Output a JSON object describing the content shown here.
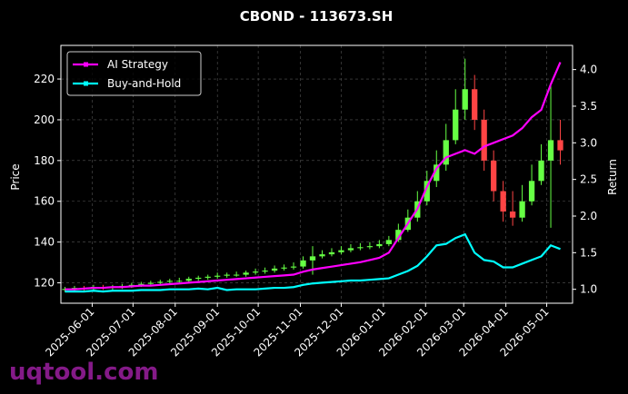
{
  "chart_data": {
    "type": "candlestick",
    "title": "CBOND - 113673.SH",
    "y_label": "Price",
    "y2_label": "Return",
    "watermark": "uqtool.com",
    "up_color": "#66ff44",
    "down_color": "#ff4444",
    "grid": true,
    "legend": "upper left",
    "x": [
      "2025-05-12",
      "2025-05-19",
      "2025-05-26",
      "2025-06-02",
      "2025-06-09",
      "2025-06-16",
      "2025-06-23",
      "2025-06-30",
      "2025-07-07",
      "2025-07-14",
      "2025-07-21",
      "2025-07-28",
      "2025-08-04",
      "2025-08-11",
      "2025-08-18",
      "2025-08-25",
      "2025-09-01",
      "2025-09-08",
      "2025-09-15",
      "2025-09-22",
      "2025-09-29",
      "2025-10-06",
      "2025-10-13",
      "2025-10-20",
      "2025-10-27",
      "2025-11-03",
      "2025-11-10",
      "2025-11-17",
      "2025-11-24",
      "2025-12-01",
      "2025-12-08",
      "2025-12-15",
      "2025-12-22",
      "2025-12-29",
      "2026-01-05",
      "2026-01-12",
      "2026-01-19",
      "2026-01-26",
      "2026-02-02",
      "2026-02-09",
      "2026-02-16",
      "2026-02-23",
      "2026-03-02",
      "2026-03-09",
      "2026-03-16",
      "2026-03-23",
      "2026-03-30",
      "2026-04-06",
      "2026-04-13",
      "2026-04-20",
      "2026-04-27",
      "2026-05-04",
      "2026-05-11"
    ],
    "open": [
      116.5,
      117,
      117.5,
      117,
      118,
      117.5,
      118,
      118.5,
      119,
      119.5,
      120,
      120.5,
      121,
      121,
      122,
      122.5,
      123,
      123.5,
      124,
      124,
      125,
      125.5,
      126,
      127,
      127.5,
      128,
      131,
      133,
      134,
      135,
      136,
      137,
      137.5,
      138,
      139,
      141,
      146,
      152,
      160,
      170,
      178,
      190,
      205,
      215,
      200,
      180,
      165,
      155,
      152,
      160,
      170,
      180,
      190
    ],
    "high": [
      118,
      118.5,
      118.5,
      119,
      119,
      119,
      119.5,
      120,
      120.5,
      121,
      121.5,
      122,
      122.5,
      123,
      123.5,
      124,
      125,
      125,
      125.5,
      126,
      127,
      127.5,
      128.5,
      129,
      130,
      133,
      138,
      136,
      137,
      138,
      139,
      139.5,
      140,
      141,
      143,
      149,
      156,
      165,
      175,
      185,
      198,
      215,
      230,
      222,
      205,
      185,
      170,
      165,
      168,
      178,
      188,
      218,
      200
    ],
    "low": [
      115.5,
      116,
      116,
      116,
      116.5,
      116.5,
      117,
      117.5,
      118,
      118.5,
      119,
      119.5,
      120,
      120,
      121,
      121.5,
      122,
      122.5,
      123,
      123,
      124,
      124.5,
      125,
      126,
      126.5,
      127,
      124,
      132,
      133,
      134,
      135,
      136,
      136.5,
      137,
      138,
      140,
      145,
      150,
      158,
      167,
      175,
      188,
      200,
      195,
      175,
      160,
      150,
      148,
      150,
      158,
      168,
      147,
      178
    ],
    "close": [
      117,
      117.5,
      117,
      118,
      117.5,
      118,
      118.5,
      119,
      119.5,
      120,
      120.5,
      121,
      121,
      122,
      122.5,
      123,
      123.5,
      124,
      124,
      125,
      125.5,
      126,
      127,
      127.5,
      128,
      131,
      133,
      134,
      135,
      136,
      137,
      137.5,
      138,
      139,
      141,
      146,
      152,
      160,
      170,
      178,
      190,
      205,
      215,
      200,
      180,
      165,
      155,
      152,
      160,
      170,
      180,
      190,
      185
    ],
    "series": [
      {
        "name": "AI Strategy",
        "color": "#ff00ff",
        "axis": "y2",
        "values": [
          1.0,
          1.0,
          1.01,
          1.02,
          1.02,
          1.03,
          1.03,
          1.04,
          1.05,
          1.05,
          1.06,
          1.07,
          1.08,
          1.09,
          1.1,
          1.11,
          1.12,
          1.13,
          1.14,
          1.15,
          1.16,
          1.17,
          1.18,
          1.19,
          1.2,
          1.24,
          1.27,
          1.29,
          1.31,
          1.33,
          1.35,
          1.37,
          1.4,
          1.43,
          1.5,
          1.7,
          1.9,
          2.1,
          2.4,
          2.65,
          2.8,
          2.85,
          2.9,
          2.85,
          2.95,
          3.0,
          3.05,
          3.1,
          3.2,
          3.35,
          3.45,
          3.8,
          4.1
        ]
      },
      {
        "name": "Buy-and-Hold",
        "color": "#00ffff",
        "axis": "y2",
        "values": [
          0.97,
          0.97,
          0.97,
          0.98,
          0.97,
          0.98,
          0.98,
          0.98,
          0.99,
          0.99,
          0.99,
          1.0,
          1.0,
          1.0,
          1.01,
          1.0,
          1.02,
          0.99,
          1.0,
          1.0,
          1.0,
          1.01,
          1.02,
          1.02,
          1.03,
          1.06,
          1.08,
          1.09,
          1.1,
          1.11,
          1.12,
          1.12,
          1.13,
          1.14,
          1.15,
          1.2,
          1.25,
          1.32,
          1.45,
          1.6,
          1.62,
          1.7,
          1.75,
          1.5,
          1.4,
          1.38,
          1.3,
          1.3,
          1.35,
          1.4,
          1.45,
          1.6,
          1.55
        ]
      }
    ],
    "xlim": [
      "2025-05-09",
      "2026-05-20"
    ],
    "xticks": [
      "2025-06-01",
      "2025-07-01",
      "2025-08-01",
      "2025-09-01",
      "2025-10-01",
      "2025-11-01",
      "2025-12-01",
      "2026-01-01",
      "2026-02-01",
      "2026-03-01",
      "2026-04-01",
      "2026-05-01"
    ],
    "ylim": [
      110,
      236.5
    ],
    "yticks": [
      120,
      140,
      160,
      180,
      200,
      220
    ],
    "y2lim": [
      0.81,
      4.33
    ],
    "y2ticks": [
      {
        "value": 1.0,
        "label": "1.0"
      },
      {
        "value": 1.5,
        "label": "1.5"
      },
      {
        "value": 2.0,
        "label": "2.0"
      },
      {
        "value": 2.5,
        "label": "2.5"
      },
      {
        "value": 3.0,
        "label": "3.0"
      },
      {
        "value": 3.5,
        "label": "3.5"
      },
      {
        "value": 4.0,
        "label": "4.0"
      }
    ]
  }
}
